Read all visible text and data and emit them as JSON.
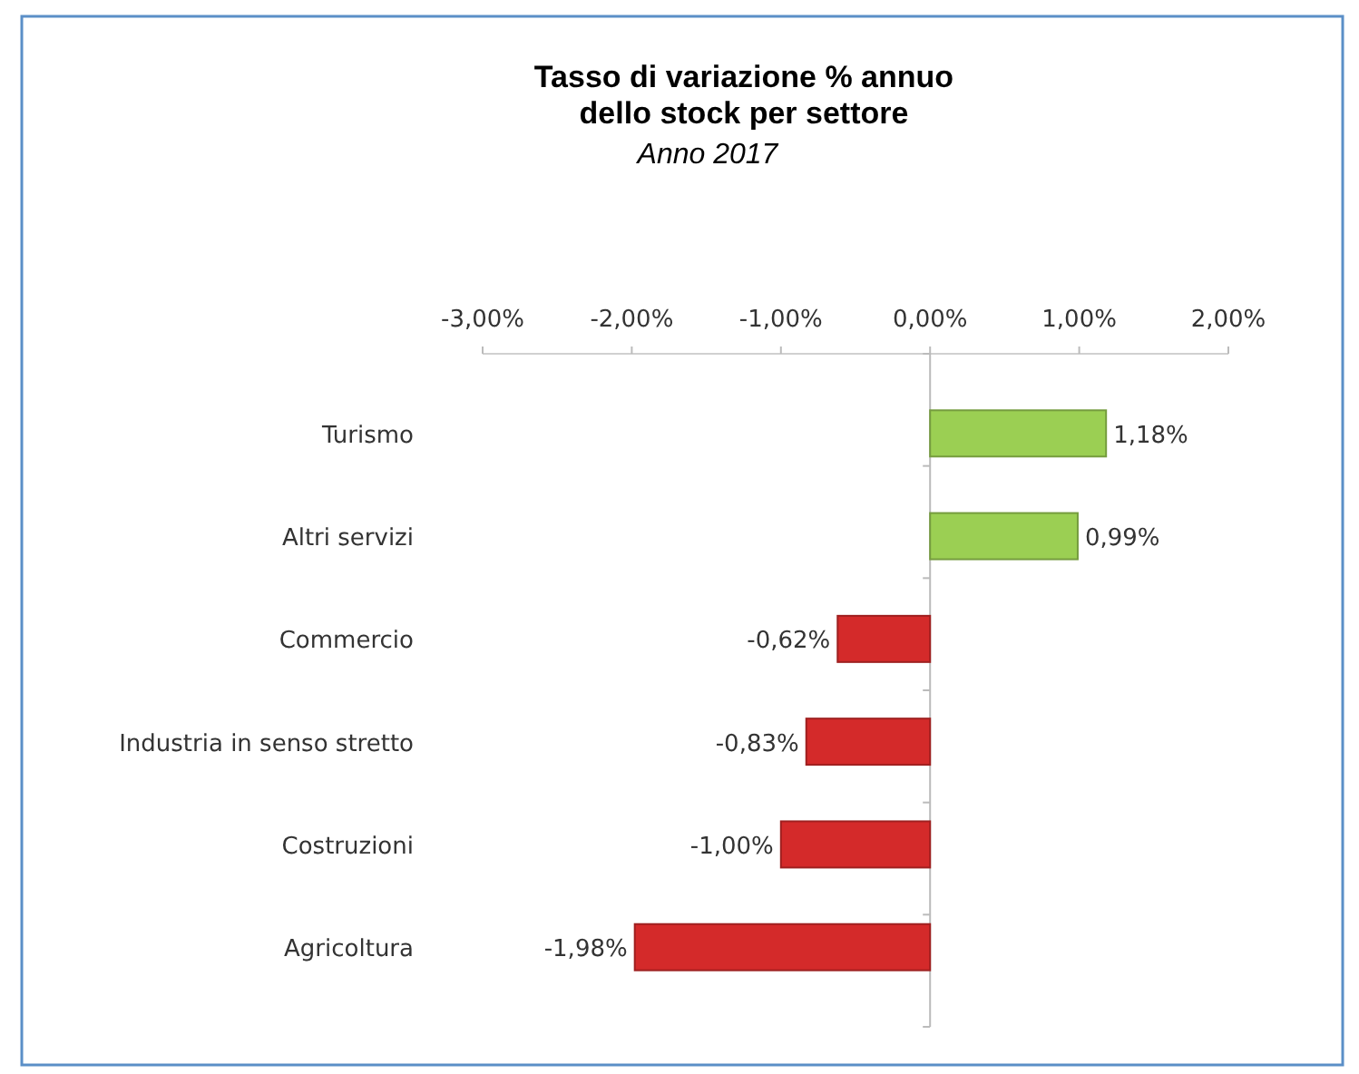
{
  "chart_data": {
    "type": "bar",
    "orientation": "horizontal",
    "title": "Tasso di variazione % annuo\ndello stock per settore",
    "subtitle": "Anno 2017",
    "categories": [
      "Turismo",
      "Altri servizi",
      "Commercio",
      "Industria in senso stretto",
      "Costruzioni",
      "Agricoltura"
    ],
    "values": [
      1.18,
      0.99,
      -0.62,
      -0.83,
      -1.0,
      -1.98
    ],
    "colors": [
      "#9bcf53",
      "#9bcf53",
      "#d42a2a",
      "#d42a2a",
      "#d42a2a",
      "#d42a2a"
    ],
    "value_labels": [
      "1,18%",
      "0,99%",
      "-0,62%",
      "-0,83%",
      "-1,00%",
      "-1,98%"
    ],
    "xlim": [
      -3,
      2
    ],
    "xticks": [
      {
        "value": -3,
        "label": "-3,00%"
      },
      {
        "value": -2,
        "label": "-2,00%"
      },
      {
        "value": -1,
        "label": "-1,00%"
      },
      {
        "value": 0,
        "label": "0,00%"
      },
      {
        "value": 1,
        "label": "1,00%"
      },
      {
        "value": 2,
        "label": "2,00%"
      }
    ],
    "xlabel": null
  }
}
